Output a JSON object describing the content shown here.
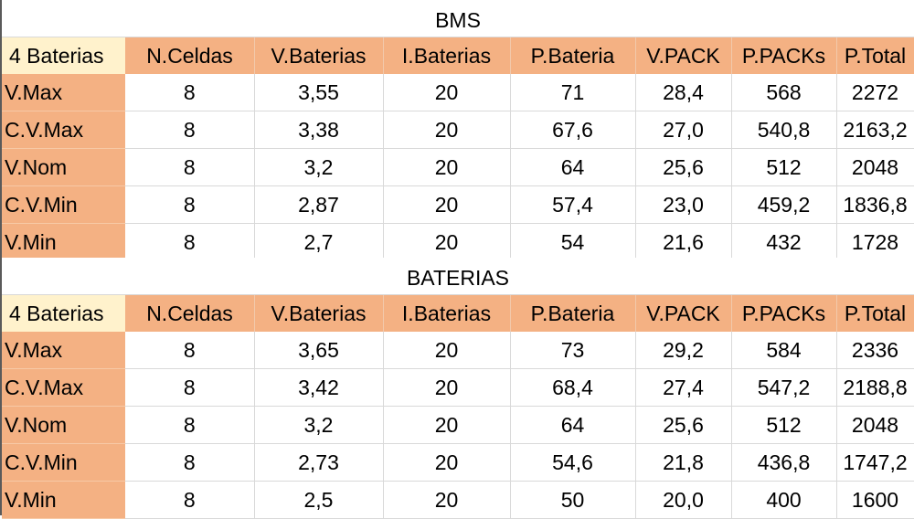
{
  "tables": [
    {
      "title": "BMS",
      "corner": "4 Baterias",
      "headers": [
        "N.Celdas",
        "V.Baterias",
        "I.Baterias",
        "P.Bateria",
        "V.PACK",
        "P.PACKs",
        "P.Total"
      ],
      "rows": [
        {
          "label": "V.Max",
          "values": [
            "8",
            "3,55",
            "20",
            "71",
            "28,4",
            "568",
            "2272"
          ]
        },
        {
          "label": "C.V.Max",
          "values": [
            "8",
            "3,38",
            "20",
            "67,6",
            "27,0",
            "540,8",
            "2163,2"
          ]
        },
        {
          "label": "V.Nom",
          "values": [
            "8",
            "3,2",
            "20",
            "64",
            "25,6",
            "512",
            "2048"
          ]
        },
        {
          "label": "C.V.Min",
          "values": [
            "8",
            "2,87",
            "20",
            "57,4",
            "23,0",
            "459,2",
            "1836,8"
          ]
        },
        {
          "label": "V.Min",
          "values": [
            "8",
            "2,7",
            "20",
            "54",
            "21,6",
            "432",
            "1728"
          ]
        }
      ]
    },
    {
      "title": "BATERIAS",
      "corner": "4 Baterias",
      "headers": [
        "N.Celdas",
        "V.Baterias",
        "I.Baterias",
        "P.Bateria",
        "V.PACK",
        "P.PACKs",
        "P.Total"
      ],
      "rows": [
        {
          "label": "V.Max",
          "values": [
            "8",
            "3,65",
            "20",
            "73",
            "29,2",
            "584",
            "2336"
          ]
        },
        {
          "label": "C.V.Max",
          "values": [
            "8",
            "3,42",
            "20",
            "68,4",
            "27,4",
            "547,2",
            "2188,8"
          ]
        },
        {
          "label": "V.Nom",
          "values": [
            "8",
            "3,2",
            "20",
            "64",
            "25,6",
            "512",
            "2048"
          ]
        },
        {
          "label": "C.V.Min",
          "values": [
            "8",
            "2,73",
            "20",
            "54,6",
            "21,8",
            "436,8",
            "1747,2"
          ]
        },
        {
          "label": "V.Min",
          "values": [
            "8",
            "2,5",
            "20",
            "50",
            "20,0",
            "400",
            "1600"
          ]
        }
      ]
    }
  ],
  "colors": {
    "header_fill": "#f4b183",
    "corner_fill": "#fff2cc",
    "grid_line": "#d9d9d9"
  }
}
